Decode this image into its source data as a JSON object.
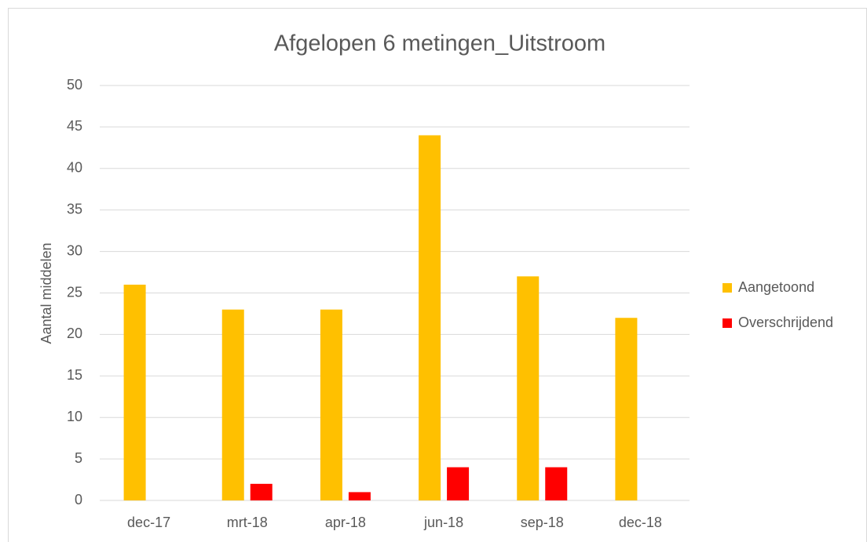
{
  "chart_data": {
    "type": "bar",
    "title": "Afgelopen 6 metingen_Uitstroom",
    "y_label": "Aantal middelen",
    "categories": [
      "dec-17",
      "mrt-18",
      "apr-18",
      "jun-18",
      "sep-18",
      "dec-18"
    ],
    "series": [
      {
        "name": "Aangetoond",
        "color": "#ffc000",
        "values": [
          26,
          23,
          23,
          44,
          27,
          22
        ]
      },
      {
        "name": "Overschrijdend",
        "color": "#ff0000",
        "values": [
          0,
          2,
          1,
          4,
          4,
          0
        ]
      }
    ],
    "ylim": [
      0,
      50
    ],
    "yticks": [
      0,
      5,
      10,
      15,
      20,
      25,
      30,
      35,
      40,
      45,
      50
    ],
    "grid": true,
    "legend": "right"
  }
}
